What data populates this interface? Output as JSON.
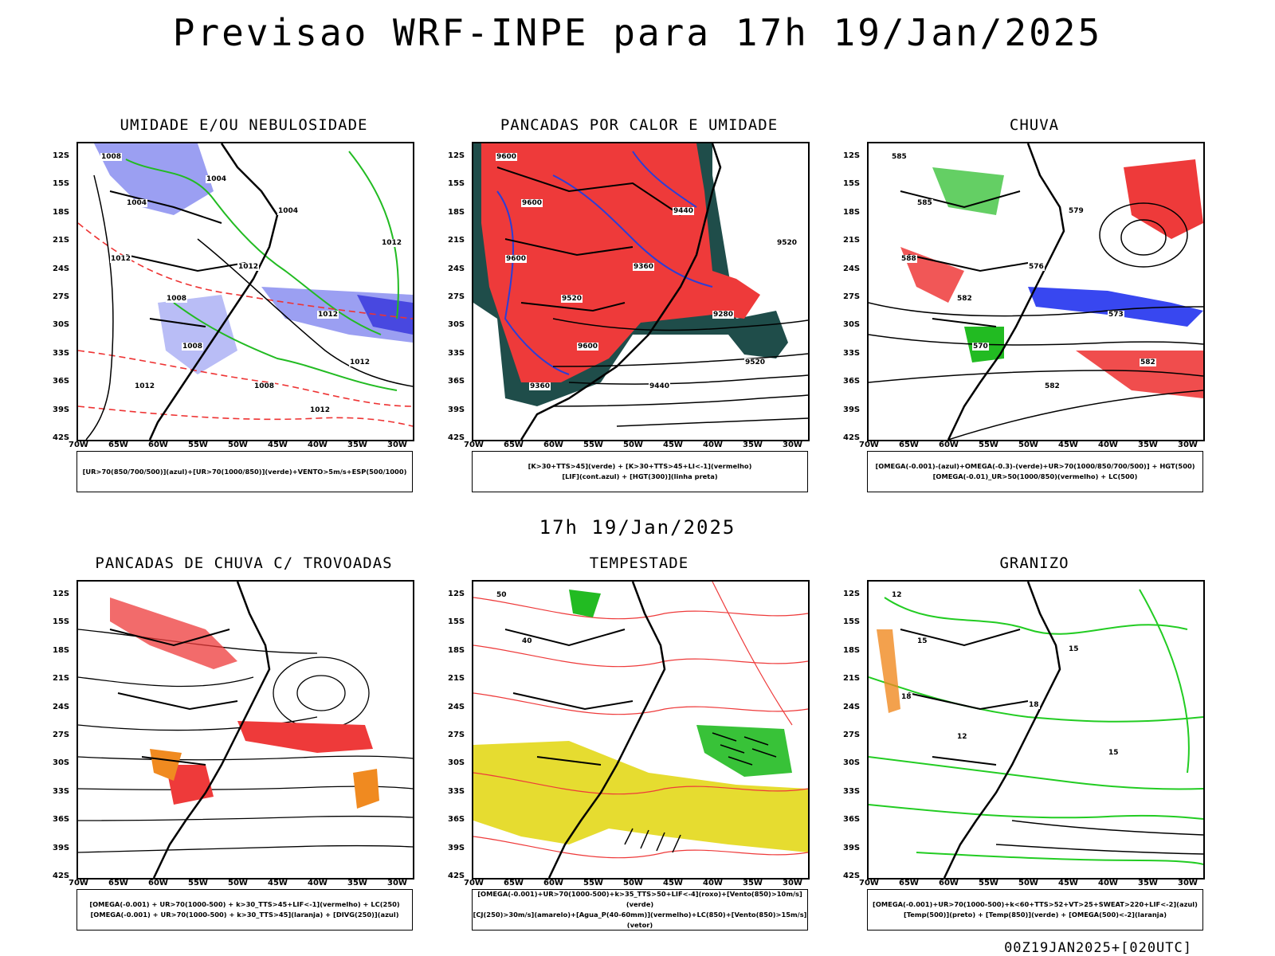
{
  "title": "Previsao WRF-INPE  para 17h 19/Jan/2025",
  "mid_title": "17h 19/Jan/2025",
  "footer": "00Z19JAN2025+[020UTC]",
  "axes": {
    "lat_labels": [
      "12S",
      "15S",
      "18S",
      "21S",
      "24S",
      "27S",
      "30S",
      "33S",
      "36S",
      "39S",
      "42S"
    ],
    "lon_labels": [
      "70W",
      "65W",
      "60W",
      "55W",
      "50W",
      "45W",
      "40W",
      "35W",
      "30W"
    ]
  },
  "panels": [
    {
      "id": "umidade",
      "title": "UMIDADE E/OU NEBULOSIDADE",
      "legend": [
        "[UR>70(850/700/500)](azul)+[UR>70(1000/850)](verde)+VENTO>5m/s+ESP(500/1000)"
      ],
      "colors": [
        "#8a8ef0",
        "#4848e0",
        "#22bb22",
        "#ee3333"
      ],
      "contour_labels": [
        "1008",
        "1004",
        "1012",
        "1008",
        "1004",
        "1012",
        "1012",
        "1008",
        "1012",
        "1008",
        "1012",
        "1012",
        "1004",
        "1012"
      ]
    },
    {
      "id": "pancadas-calor",
      "title": "PANCADAS POR CALOR E UMIDADE",
      "legend": [
        "[K>30+TTS>45](verde) + [K>30+TTS>45+LI<-1](vermelho)",
        "[LIF](cont.azul) + [HGT(300)](linha preta)"
      ],
      "colors": [
        "#ee3a3a",
        "#1f4d4a",
        "#2a3ed8",
        "#000000"
      ],
      "contour_labels": [
        "9600",
        "9600",
        "9600",
        "9520",
        "9440",
        "9360",
        "9280",
        "9600",
        "9520",
        "9440",
        "9360",
        "9520"
      ]
    },
    {
      "id": "chuva",
      "title": "CHUVA",
      "legend": [
        "[OMEGA(-0.001)-(azul)+OMEGA(-0.3)-(verde)+UR>70(1000/850/700/500)] + HGT(500)",
        "[OMEGA(-0.01)_UR>50(1000/850)(vermelho) + LC(500)"
      ],
      "colors": [
        "#ee3a3a",
        "#2233ee",
        "#22bb22",
        "#000000"
      ],
      "contour_labels": [
        "585",
        "585",
        "588",
        "582",
        "579",
        "576",
        "573",
        "570",
        "582",
        "582"
      ]
    },
    {
      "id": "pancadas-trovoadas",
      "title": "PANCADAS DE CHUVA C/ TROVOADAS",
      "legend": [
        "[OMEGA(-0.001) + UR>70(1000-500) + k>30_TTS>45+LIF<-1](vermelho) + LC(250)",
        "[OMEGA(-0.001) + UR>70(1000-500) + k>30_TTS>45](laranja) + [DIVG(250)](azul)"
      ],
      "colors": [
        "#ee3a3a",
        "#f08a20",
        "#2233ee",
        "#000000"
      ],
      "contour_labels": []
    },
    {
      "id": "tempestade",
      "title": "TEMPESTADE",
      "legend": [
        "[OMEGA(-0.001)+UR>70(1000-500)+k>35_TTS>50+LIF<-4](roxo)+[Vento(850)>10m/s](verde)",
        "[CJ(250)>30m/s](amarelo)+[Agua_P(40-60mm)](vermelho)+LC(850)+[Vento(850)>15m/s](vetor)"
      ],
      "colors": [
        "#e6dc30",
        "#ee3a3a",
        "#22bb22",
        "#000000"
      ],
      "contour_labels": [
        "50",
        "40"
      ]
    },
    {
      "id": "granizo",
      "title": "GRANIZO",
      "legend": [
        "[OMEGA(-0.001)+UR>70(1000-500)+k<60+TTS>52+VT>25+SWEAT>220+LIF<-2](azul)",
        "[Temp(500)](preto) + [Temp(850)](verde) + [OMEGA(500)<-2](laranja)"
      ],
      "colors": [
        "#22cc22",
        "#000000",
        "#f08a20",
        "#2233ee"
      ],
      "contour_labels": [
        "12",
        "15",
        "18",
        "12",
        "15",
        "18",
        "15"
      ]
    }
  ]
}
